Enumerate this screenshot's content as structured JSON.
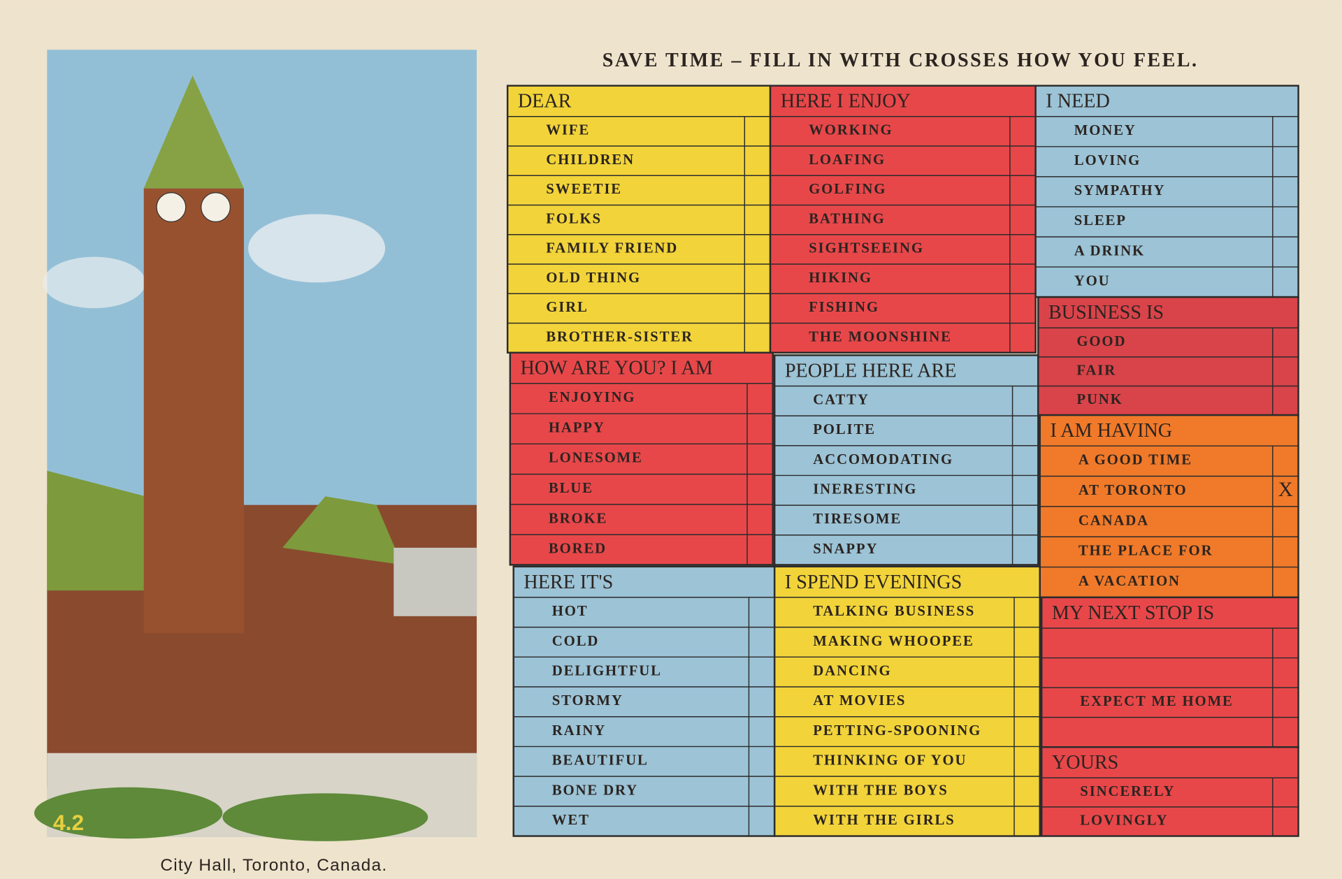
{
  "title": "SAVE TIME – FILL IN WITH CROSSES HOW YOU FEEL.",
  "caption": "City Hall, Toronto, Canada.",
  "photo_number": "4.2",
  "sections": [
    {
      "heading": "DEAR",
      "items": [
        "WIFE",
        "CHILDREN",
        "SWEETIE",
        "FOLKS",
        "FAMILY FRIEND",
        "OLD THING",
        "GIRL",
        "BROTHER-SISTER"
      ]
    },
    {
      "heading": "HOW ARE YOU? I AM",
      "items": [
        "ENJOYING",
        "HAPPY",
        "LONESOME",
        "BLUE",
        "BROKE",
        "BORED"
      ]
    },
    {
      "heading": "HERE IT'S",
      "items": [
        "HOT",
        "COLD",
        "DELIGHTFUL",
        "STORMY",
        "RAINY",
        "BEAUTIFUL",
        "BONE DRY",
        "WET"
      ]
    },
    {
      "heading": "HERE I ENJOY",
      "items": [
        "WORKING",
        "LOAFING",
        "GOLFING",
        "BATHING",
        "SIGHTSEEING",
        "HIKING",
        "FISHING",
        "THE MOONSHINE"
      ]
    },
    {
      "heading": "PEOPLE HERE ARE",
      "items": [
        "CATTY",
        "POLITE",
        "ACCOMODATING",
        "INERESTING",
        "TIRESOME",
        "SNAPPY"
      ]
    },
    {
      "heading": "I SPEND EVENINGS",
      "items": [
        "TALKING BUSINESS",
        "MAKING WHOOPEE",
        "DANCING",
        "AT MOVIES",
        "PETTING-SPOONING",
        "THINKING OF YOU",
        "WITH THE BOYS",
        "WITH THE GIRLS"
      ]
    },
    {
      "heading": "I NEED",
      "items": [
        "MONEY",
        "LOVING",
        "SYMPATHY",
        "SLEEP",
        "A DRINK",
        "YOU"
      ]
    },
    {
      "heading": "BUSINESS IS",
      "items": [
        "GOOD",
        "FAIR",
        "PUNK"
      ]
    },
    {
      "heading": "I AM HAVING",
      "items": [
        "A GOOD TIME",
        "AT TORONTO",
        "CANADA",
        "THE PLACE FOR",
        "A VACATION"
      ],
      "cross": "X"
    },
    {
      "heading": "MY NEXT STOP IS",
      "items": [
        "EXPECT ME HOME"
      ]
    },
    {
      "heading": "YOURS",
      "items": [
        "SINCERELY",
        "LOVINGLY"
      ]
    }
  ]
}
